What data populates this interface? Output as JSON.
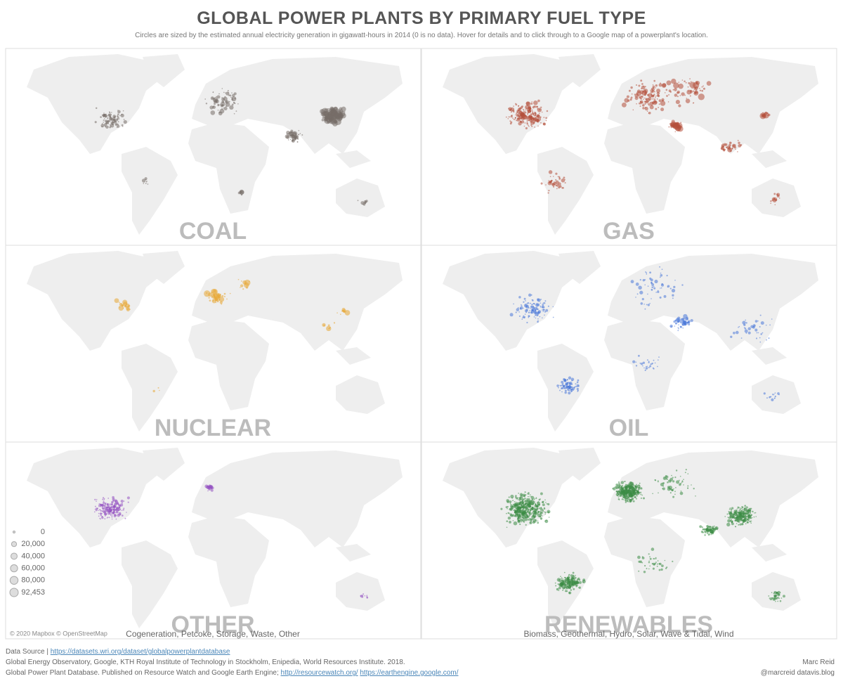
{
  "title": "GLOBAL POWER PLANTS BY PRIMARY FUEL TYPE",
  "subtitle": "Circles are sized by the estimated annual electricity generation in gigawatt-hours in 2014 (0 is no data). Hover for details and to click through to a Google map of a powerplant's location.",
  "panels": [
    {
      "label": "COAL",
      "color": "#776d68"
    },
    {
      "label": "GAS",
      "color": "#b5503c"
    },
    {
      "label": "NUCLEAR",
      "color": "#e8a735"
    },
    {
      "label": "OIL",
      "color": "#4a78d8"
    },
    {
      "label": "OTHER",
      "sublabel": "Cogeneration, Petcoke, Storage, Waste, Other",
      "color": "#9553c2"
    },
    {
      "label": "RENEWABLES",
      "sublabel": "Biomass, Geothermal, Hydro, Solar, Wave & Tidal, Wind",
      "color": "#3d8d45"
    }
  ],
  "legend": [
    0,
    {
      "value": 20000,
      "label": "20,000"
    },
    {
      "value": 40000,
      "label": "40,000"
    },
    {
      "value": 60000,
      "label": "60,000"
    },
    {
      "value": 80000,
      "label": "80,000"
    },
    {
      "value": 92453,
      "label": "92,453"
    }
  ],
  "attribution": "© 2020 Mapbox © OpenStreetMap",
  "footer": {
    "source_prefix": "Data Source |",
    "source_link": "https://datasets.wri.org/dataset/globalpowerplantdatabase",
    "line2": "Global Energy Observatory, Google, KTH Royal Institute of Technology in Stockholm, Enipedia, World Resources Institute. 2018.",
    "line3": "Global Power Plant Database. Published on Resource Watch and Google Earth Engine;",
    "link2": "http://resourcewatch.org/",
    "link3": "https://earthengine.google.com/",
    "author": "Marc Reid",
    "handle": "@marcreid  datavis.blog"
  }
}
